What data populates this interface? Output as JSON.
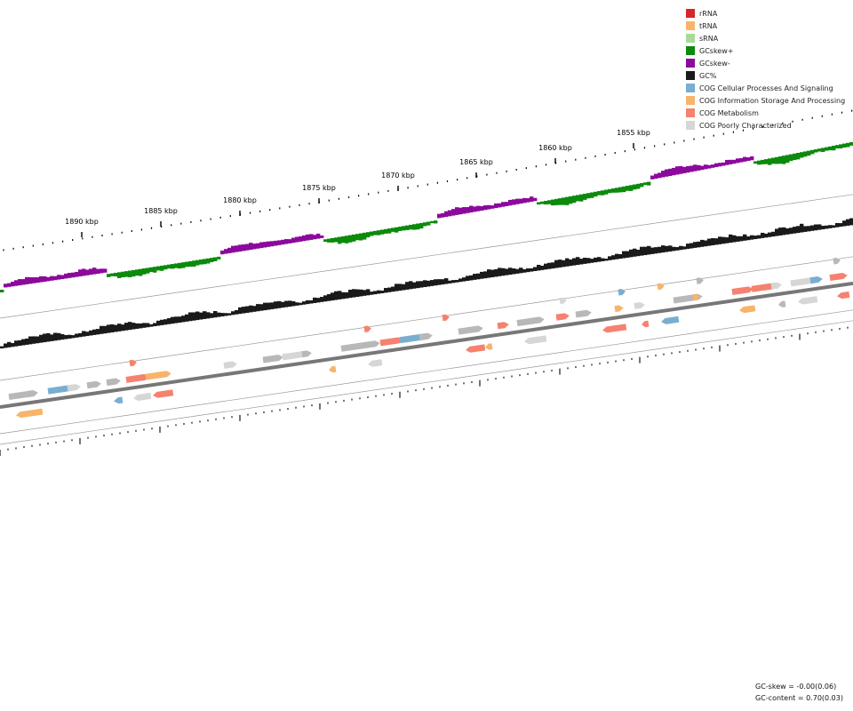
{
  "legend": [
    {
      "label": "rRNA",
      "color": "#d62728"
    },
    {
      "label": "tRNA",
      "color": "#f7b46a"
    },
    {
      "label": "sRNA",
      "color": "#a8dc96"
    },
    {
      "label": "GCskew+",
      "color": "#0c8a0c"
    },
    {
      "label": "GCskew-",
      "color": "#8b0a9c"
    },
    {
      "label": "GC%",
      "color": "#1a1a1a"
    },
    {
      "label": "COG Cellular Processes And Signaling",
      "color": "#7aaed1"
    },
    {
      "label": "COG Information Storage And Processing",
      "color": "#f7b46a"
    },
    {
      "label": "COG Metabolism",
      "color": "#f5826f"
    },
    {
      "label": "COG Poorly Characterized",
      "color": "#d6d6d6"
    }
  ],
  "ruler": {
    "labels": [
      "1890 kbp",
      "1885 kbp",
      "1880 kbp",
      "1875 kbp",
      "1870 kbp",
      "1865 kbp",
      "1860 kbp",
      "1855 kbp"
    ]
  },
  "stats": {
    "gc_skew": "GC-skew = -0.00(0.06)",
    "gc_content": "GC-content = 0.70(0.03)"
  },
  "colors": {
    "cellular": "#7aaed1",
    "information": "#f7b46a",
    "metabolism": "#f5826f",
    "poorly": "#d6d6d6",
    "unknown": "#b8b8b8",
    "skew_pos": "#0c8a0c",
    "skew_neg": "#8b0a9c",
    "gc": "#1a1a1a"
  }
}
